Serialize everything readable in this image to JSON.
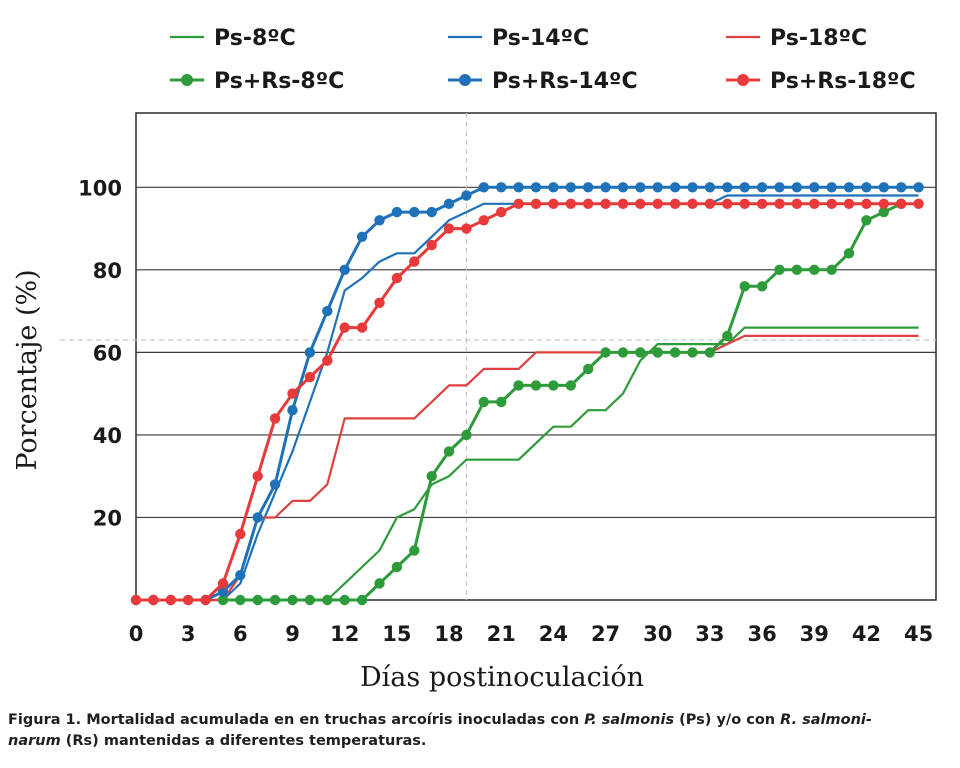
{
  "chart_data": {
    "type": "line",
    "xlabel": "Días postinoculación",
    "ylabel": "Porcentaje (%)",
    "xlim": [
      0,
      46
    ],
    "ylim": [
      0,
      118
    ],
    "xticks": [
      0,
      3,
      6,
      9,
      12,
      15,
      18,
      21,
      24,
      27,
      30,
      33,
      36,
      39,
      42,
      45
    ],
    "yticks": [
      20,
      40,
      60,
      80,
      100
    ],
    "grid": "dashed lines at x=19 and y=63",
    "legend_position": "top",
    "series": [
      {
        "name": "Ps-8ºC",
        "color": "#2e9b3a",
        "markers": false,
        "x": [
          0,
          11,
          13,
          14,
          15,
          16,
          17,
          18,
          19,
          22,
          23,
          24,
          25,
          26,
          27,
          28,
          29,
          30,
          31,
          32,
          33,
          34,
          35,
          45
        ],
        "y": [
          0,
          0,
          8,
          12,
          20,
          22,
          28,
          30,
          34,
          34,
          38,
          42,
          42,
          46,
          46,
          50,
          58,
          62,
          62,
          62,
          62,
          62,
          66,
          66
        ]
      },
      {
        "name": "Ps-14ºC",
        "color": "#1f72b8",
        "markers": false,
        "x": [
          0,
          5,
          6,
          7,
          8,
          9,
          10,
          11,
          12,
          13,
          14,
          15,
          16,
          17,
          18,
          19,
          20,
          21,
          22,
          33,
          34,
          45
        ],
        "y": [
          0,
          0,
          4,
          16,
          26,
          36,
          48,
          60,
          75,
          78,
          82,
          84,
          84,
          88,
          92,
          94,
          96,
          96,
          96,
          96,
          98,
          98
        ]
      },
      {
        "name": "Ps-18ºC",
        "color": "#e04040",
        "markers": false,
        "x": [
          0,
          5,
          6,
          7,
          8,
          9,
          10,
          11,
          12,
          13,
          14,
          15,
          16,
          17,
          18,
          19,
          20,
          21,
          22,
          23,
          33,
          34,
          35,
          45
        ],
        "y": [
          0,
          0,
          6,
          20,
          20,
          24,
          24,
          28,
          44,
          44,
          44,
          44,
          44,
          48,
          52,
          52,
          56,
          56,
          56,
          60,
          60,
          62,
          64,
          64
        ]
      },
      {
        "name": "Ps+Rs-8ºC",
        "color": "#2e9b3a",
        "markers": true,
        "x": [
          5,
          6,
          7,
          8,
          9,
          10,
          11,
          12,
          13,
          14,
          15,
          16,
          17,
          18,
          19,
          20,
          21,
          22,
          23,
          24,
          25,
          26,
          27,
          28,
          29,
          30,
          31,
          32,
          33,
          34,
          35,
          36,
          37,
          38,
          39,
          40,
          41,
          42,
          43,
          44
        ],
        "y": [
          0,
          0,
          0,
          0,
          0,
          0,
          0,
          0,
          0,
          4,
          8,
          12,
          30,
          36,
          40,
          48,
          48,
          52,
          52,
          52,
          52,
          56,
          60,
          60,
          60,
          60,
          60,
          60,
          60,
          64,
          76,
          76,
          80,
          80,
          80,
          80,
          84,
          92,
          94,
          96
        ]
      },
      {
        "name": "Ps+Rs-14ºC",
        "color": "#1f72b8",
        "markers": true,
        "x": [
          0,
          1,
          2,
          3,
          4,
          5,
          6,
          7,
          8,
          9,
          10,
          11,
          12,
          13,
          14,
          15,
          16,
          17,
          18,
          19,
          20,
          21,
          22,
          23,
          24,
          25,
          26,
          27,
          28,
          29,
          30,
          31,
          32,
          33,
          34,
          35,
          36,
          37,
          38,
          39,
          40,
          41,
          42,
          43,
          44,
          45
        ],
        "y": [
          0,
          0,
          0,
          0,
          0,
          2,
          6,
          20,
          28,
          46,
          60,
          70,
          80,
          88,
          92,
          94,
          94,
          94,
          96,
          98,
          100,
          100,
          100,
          100,
          100,
          100,
          100,
          100,
          100,
          100,
          100,
          100,
          100,
          100,
          100,
          100,
          100,
          100,
          100,
          100,
          100,
          100,
          100,
          100,
          100,
          100
        ]
      },
      {
        "name": "Ps+Rs-18ºC",
        "color": "#e83a3a",
        "markers": true,
        "x": [
          0,
          1,
          2,
          3,
          4,
          5,
          6,
          7,
          8,
          9,
          10,
          11,
          12,
          13,
          14,
          15,
          16,
          17,
          18,
          19,
          20,
          21,
          22,
          23,
          24,
          25,
          26,
          27,
          28,
          29,
          30,
          31,
          32,
          33,
          34,
          35,
          36,
          37,
          38,
          39,
          40,
          41,
          42,
          43,
          44,
          45
        ],
        "y": [
          0,
          0,
          0,
          0,
          0,
          4,
          16,
          30,
          44,
          50,
          54,
          58,
          66,
          66,
          72,
          78,
          82,
          86,
          90,
          90,
          92,
          94,
          96,
          96,
          96,
          96,
          96,
          96,
          96,
          96,
          96,
          96,
          96,
          96,
          96,
          96,
          96,
          96,
          96,
          96,
          96,
          96,
          96,
          96,
          96,
          96
        ]
      }
    ]
  },
  "caption": {
    "label": "Figura 1.",
    "text_1": " Mortalidad acumulada en en truchas arcoíris  inoculadas con ",
    "italic_1": "P. salmonis",
    "text_2": " (Ps) y/o con ",
    "italic_2": "R. salmoni-",
    "italic_3": "narum",
    "text_3": " (Rs) mantenidas a diferentes temperaturas."
  }
}
